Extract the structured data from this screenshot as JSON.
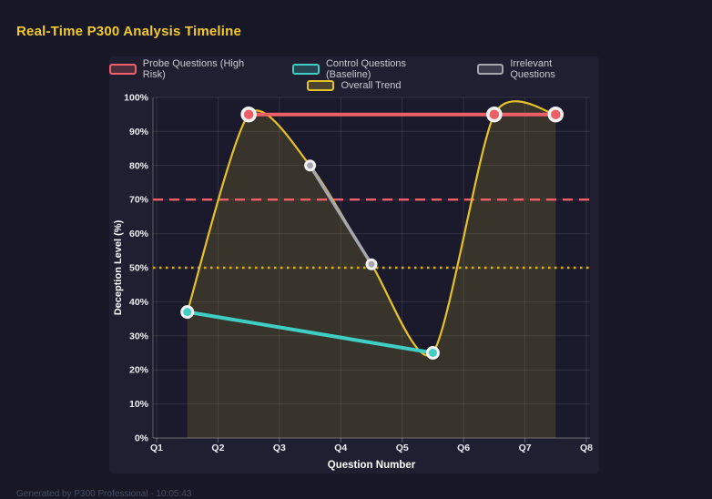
{
  "page": {
    "title": "Real-Time P300 Analysis Timeline",
    "footer": "Generated by P300 Professional - 10:05:43"
  },
  "colors": {
    "page_bg": "#171726",
    "panel_bg": "#1f1f31",
    "plot_bg": "#1a1a2c",
    "title_text": "#f3ca2b",
    "tick_text": "#eceef2",
    "probe_red": "#ef5f68",
    "control_teal": "#3fcec3",
    "irrelevant_gray": "#a6a6b0",
    "trend_yellow": "#e6c229",
    "threshold_red": "#f2606c",
    "threshold_yellow": "#e0b400"
  },
  "chart_data": {
    "type": "line",
    "title": "Real-Time P300 Analysis Timeline",
    "xlabel": "Question Number",
    "ylabel": "Deception Level (%)",
    "xlim": [
      1,
      8
    ],
    "ylim": [
      0,
      100
    ],
    "grid": true,
    "legend_position": "top",
    "x_tick_values": [
      1,
      2,
      3,
      4,
      5,
      6,
      7,
      8
    ],
    "x_tick_labels": [
      "Q1",
      "Q2",
      "Q3",
      "Q4",
      "Q5",
      "Q6",
      "Q7",
      "Q8"
    ],
    "y_tick_values": [
      0,
      10,
      20,
      30,
      40,
      50,
      60,
      70,
      80,
      90,
      100
    ],
    "y_tick_suffix": "%",
    "series": [
      {
        "name": "Probe Questions (High Risk)",
        "color": "#ef5f68",
        "x": [
          2.5,
          6.5,
          7.5
        ],
        "values": [
          95,
          95,
          95
        ],
        "smooth": false,
        "show_points": true
      },
      {
        "name": "Control Questions (Baseline)",
        "color": "#3fcec3",
        "x": [
          1.5,
          5.5
        ],
        "values": [
          37,
          25
        ],
        "smooth": false,
        "show_points": true
      },
      {
        "name": "Irrelevant Questions",
        "color": "#a6a6b0",
        "x": [
          3.5,
          4.5
        ],
        "values": [
          80,
          51
        ],
        "smooth": false,
        "show_points": true
      },
      {
        "name": "Overall Trend",
        "color": "#e6c229",
        "x": [
          1.5,
          2.5,
          3.5,
          4.5,
          5.5,
          6.5,
          7.5
        ],
        "values": [
          37,
          95,
          80,
          51,
          25,
          95,
          95
        ],
        "smooth": true,
        "area_fill": true,
        "show_points": false
      }
    ],
    "reference_lines": [
      {
        "value": 70,
        "style": "dashed",
        "color": "#f2606c"
      },
      {
        "value": 50,
        "style": "dotted",
        "color": "#e0b400"
      }
    ]
  }
}
